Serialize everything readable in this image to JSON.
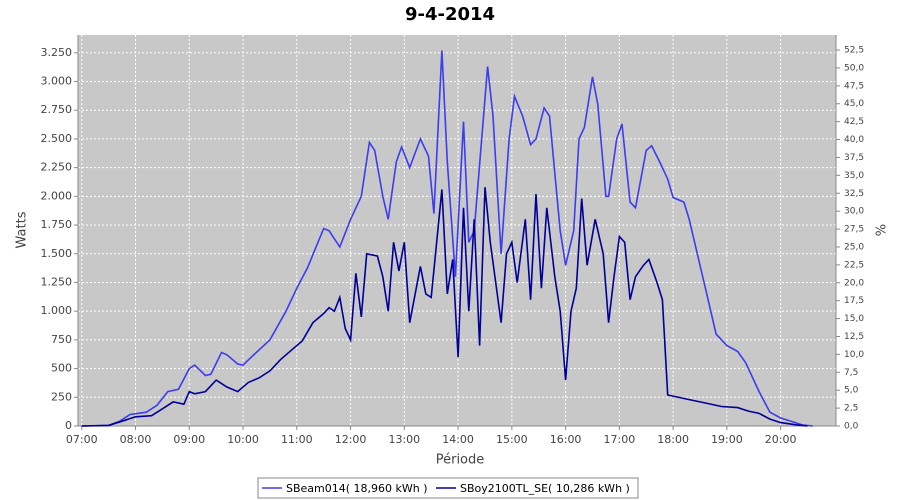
{
  "chart_data": {
    "type": "line",
    "title": "9-4-2014",
    "x_label": "Période",
    "y_label": "Watts",
    "y2_label": "%",
    "grid": true,
    "legend": "bottom",
    "xlim": [
      6.93,
      21.03
    ],
    "xticks": [
      {
        "value": 7,
        "label": "07:00"
      },
      {
        "value": 8,
        "label": "08:00"
      },
      {
        "value": 9,
        "label": "09:00"
      },
      {
        "value": 10,
        "label": "10:00"
      },
      {
        "value": 11,
        "label": "11:00"
      },
      {
        "value": 12,
        "label": "12:00"
      },
      {
        "value": 13,
        "label": "13:00"
      },
      {
        "value": 14,
        "label": "14:00"
      },
      {
        "value": 15,
        "label": "15:00"
      },
      {
        "value": 16,
        "label": "16:00"
      },
      {
        "value": 17,
        "label": "17:00"
      },
      {
        "value": 18,
        "label": "18:00"
      },
      {
        "value": 19,
        "label": "19:00"
      },
      {
        "value": 20,
        "label": "20:00"
      }
    ],
    "ylim": [
      0,
      3405
    ],
    "yticks": [
      0,
      250,
      500,
      750,
      {
        "value": 1000,
        "label": "1.000"
      },
      {
        "value": 1250,
        "label": "1.250"
      },
      {
        "value": 1500,
        "label": "1.500"
      },
      {
        "value": 1750,
        "label": "1.750"
      },
      {
        "value": 2000,
        "label": "2.000"
      },
      {
        "value": 2250,
        "label": "2.250"
      },
      {
        "value": 2500,
        "label": "2.500"
      },
      {
        "value": 2750,
        "label": "2.750"
      },
      {
        "value": 3000,
        "label": "3.000"
      },
      {
        "value": 3250,
        "label": "3.250"
      }
    ],
    "y2lim": [
      0,
      54.6
    ],
    "y2ticks": [
      {
        "value": 0,
        "label": "0,0"
      },
      {
        "value": 2.5,
        "label": "2,5"
      },
      {
        "value": 5,
        "label": "5,0"
      },
      {
        "value": 7.5,
        "label": "7,5"
      },
      {
        "value": 10,
        "label": "10,0"
      },
      {
        "value": 12.5,
        "label": "12,5"
      },
      {
        "value": 15,
        "label": "15,0"
      },
      {
        "value": 17.5,
        "label": "17,5"
      },
      {
        "value": 20,
        "label": "20,0"
      },
      {
        "value": 22.5,
        "label": "22,5"
      },
      {
        "value": 25,
        "label": "25,0"
      },
      {
        "value": 27.5,
        "label": "27,5"
      },
      {
        "value": 30,
        "label": "30,0"
      },
      {
        "value": 32.5,
        "label": "32,5"
      },
      {
        "value": 35,
        "label": "35,0"
      },
      {
        "value": 37.5,
        "label": "37,5"
      },
      {
        "value": 40,
        "label": "40,0"
      },
      {
        "value": 42.5,
        "label": "42,5"
      },
      {
        "value": 45,
        "label": "45,0"
      },
      {
        "value": 47.5,
        "label": "47,5"
      },
      {
        "value": 50,
        "label": "50,0"
      },
      {
        "value": 52.5,
        "label": "52,5"
      }
    ],
    "series": [
      {
        "name": "SBeam014( 18,960 kWh )",
        "color": "#3c3cf0",
        "x": [
          7.0,
          7.5,
          7.7,
          7.9,
          8.2,
          8.4,
          8.6,
          8.8,
          9.0,
          9.1,
          9.3,
          9.4,
          9.6,
          9.7,
          9.9,
          10.0,
          10.2,
          10.5,
          10.8,
          11.0,
          11.2,
          11.5,
          11.6,
          11.8,
          12.0,
          12.2,
          12.35,
          12.45,
          12.6,
          12.7,
          12.85,
          12.95,
          13.1,
          13.3,
          13.45,
          13.55,
          13.7,
          13.8,
          13.95,
          14.1,
          14.2,
          14.3,
          14.55,
          14.65,
          14.8,
          14.95,
          15.05,
          15.2,
          15.35,
          15.45,
          15.6,
          15.7,
          15.9,
          16.0,
          16.15,
          16.25,
          16.35,
          16.5,
          16.6,
          16.75,
          16.8,
          16.95,
          17.05,
          17.2,
          17.3,
          17.5,
          17.6,
          17.75,
          17.9,
          18.0,
          18.2,
          18.3,
          18.6,
          18.8,
          19.0,
          19.2,
          19.35,
          19.6,
          19.8,
          20.0,
          20.2,
          20.4,
          20.6
        ],
        "values": [
          0,
          5,
          40,
          100,
          120,
          180,
          300,
          320,
          500,
          530,
          440,
          450,
          640,
          620,
          540,
          530,
          620,
          750,
          1000,
          1200,
          1380,
          1720,
          1700,
          1560,
          1800,
          2000,
          2470,
          2400,
          2000,
          1800,
          2300,
          2430,
          2250,
          2500,
          2350,
          1850,
          3270,
          2300,
          1300,
          2650,
          1600,
          1700,
          3130,
          2700,
          1500,
          2500,
          2870,
          2700,
          2450,
          2500,
          2770,
          2700,
          1700,
          1400,
          1700,
          2500,
          2600,
          3040,
          2800,
          2000,
          2000,
          2500,
          2630,
          1950,
          1900,
          2400,
          2440,
          2300,
          2150,
          1990,
          1950,
          1800,
          1200,
          800,
          700,
          650,
          550,
          300,
          120,
          70,
          40,
          10,
          0
        ]
      },
      {
        "name": "SBoy2100TL_SE( 10,286 kWh )",
        "color": "#000099",
        "x": [
          7.0,
          7.5,
          7.8,
          8.0,
          8.3,
          8.5,
          8.7,
          8.9,
          9.0,
          9.1,
          9.3,
          9.5,
          9.7,
          9.9,
          10.1,
          10.3,
          10.5,
          10.7,
          10.9,
          11.1,
          11.3,
          11.5,
          11.6,
          11.7,
          11.8,
          11.9,
          12.0,
          12.1,
          12.2,
          12.3,
          12.5,
          12.6,
          12.7,
          12.8,
          12.9,
          13.0,
          13.1,
          13.3,
          13.4,
          13.5,
          13.7,
          13.8,
          13.9,
          14.0,
          14.1,
          14.2,
          14.3,
          14.4,
          14.5,
          14.6,
          14.8,
          14.9,
          15.0,
          15.1,
          15.25,
          15.35,
          15.45,
          15.55,
          15.65,
          15.8,
          15.9,
          16.0,
          16.1,
          16.2,
          16.3,
          16.4,
          16.55,
          16.7,
          16.8,
          16.9,
          17.0,
          17.1,
          17.2,
          17.3,
          17.45,
          17.55,
          17.7,
          17.8,
          17.9,
          18.0,
          18.3,
          18.6,
          18.9,
          19.2,
          19.4,
          19.6,
          19.8,
          20.0,
          20.3,
          20.5
        ],
        "values": [
          0,
          5,
          50,
          80,
          90,
          150,
          210,
          190,
          300,
          280,
          300,
          400,
          340,
          300,
          380,
          420,
          480,
          580,
          660,
          740,
          900,
          980,
          1030,
          1000,
          1120,
          850,
          750,
          1330,
          950,
          1500,
          1480,
          1300,
          1000,
          1600,
          1350,
          1600,
          900,
          1390,
          1150,
          1120,
          2060,
          1150,
          1450,
          600,
          1900,
          1000,
          1800,
          700,
          2080,
          1600,
          900,
          1500,
          1600,
          1250,
          1800,
          1100,
          2020,
          1200,
          1900,
          1300,
          1000,
          400,
          1000,
          1200,
          1980,
          1400,
          1800,
          1500,
          900,
          1300,
          1650,
          1600,
          1100,
          1300,
          1400,
          1450,
          1250,
          1100,
          270,
          260,
          230,
          200,
          170,
          160,
          130,
          110,
          60,
          30,
          10,
          0
        ]
      }
    ]
  }
}
